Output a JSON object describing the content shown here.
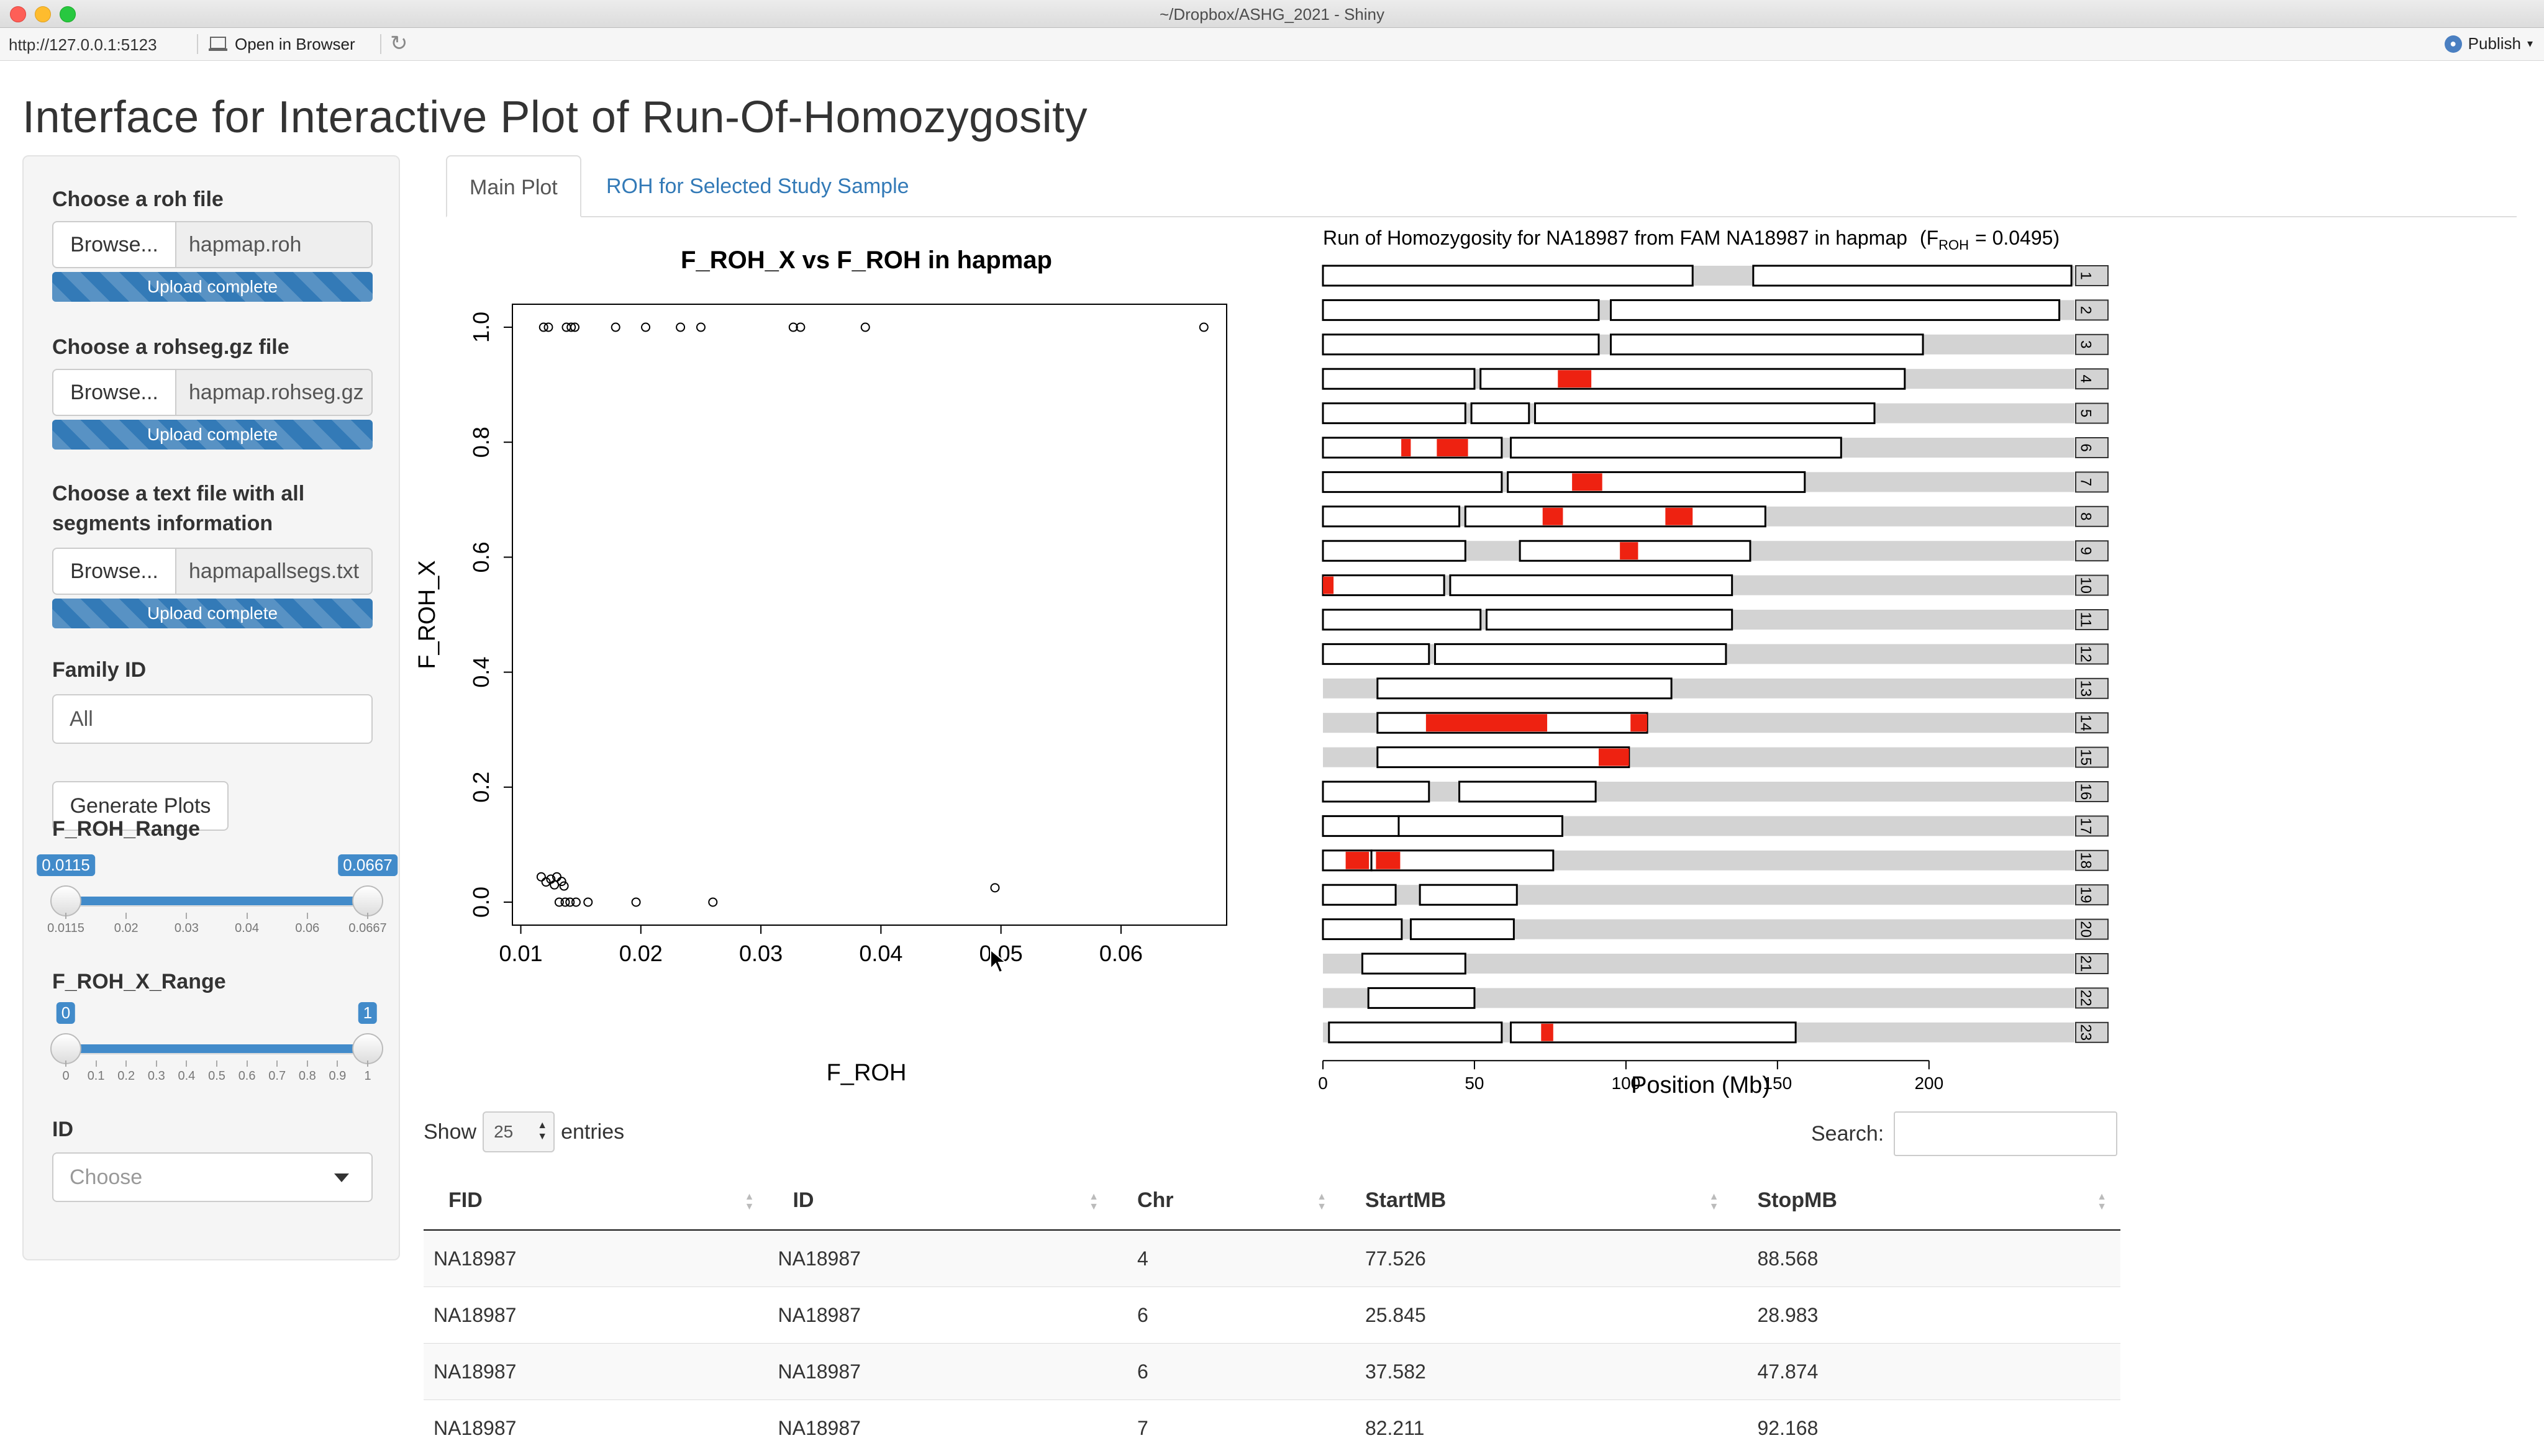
{
  "window": {
    "title": "~/Dropbox/ASHG_2021 - Shiny"
  },
  "toolbar": {
    "url": "http://127.0.0.1:5123",
    "open_in_browser": "Open in Browser",
    "publish": "Publish"
  },
  "app": {
    "title": "Interface for Interactive Plot of Run-Of-Homozygosity"
  },
  "sidebar": {
    "roh_file": {
      "label": "Choose a roh file",
      "browse": "Browse...",
      "filename": "hapmap.roh",
      "status": "Upload complete"
    },
    "rohseg_file": {
      "label": "Choose a rohseg.gz file",
      "browse": "Browse...",
      "filename": "hapmap.rohseg.gz",
      "status": "Upload complete"
    },
    "segments_file": {
      "label_line1": "Choose a text file with all",
      "label_line2": "segments information",
      "browse": "Browse...",
      "filename": "hapmapallsegs.txt",
      "status": "Upload complete"
    },
    "family_id": {
      "label": "Family ID",
      "value": "All"
    },
    "generate_button": "Generate Plots",
    "froh_range": {
      "label": "F_ROH_Range",
      "min_label": "0.0115",
      "max_label": "0.0667",
      "min": 0.0115,
      "max": 0.0667,
      "low": 0.0115,
      "high": 0.0667,
      "ticks": [
        "0.0115",
        "0.02",
        "0.03",
        "0.04",
        "0.06",
        "0.0667"
      ]
    },
    "froh_x_range": {
      "label": "F_ROH_X_Range",
      "min_label": "0",
      "max_label": "1",
      "min": 0,
      "max": 1,
      "low": 0,
      "high": 1,
      "ticks": [
        "0",
        "0.1",
        "0.2",
        "0.3",
        "0.4",
        "0.5",
        "0.6",
        "0.7",
        "0.8",
        "0.9",
        "1"
      ]
    },
    "id": {
      "label": "ID",
      "placeholder": "Choose"
    }
  },
  "tabs": [
    {
      "label": "Main Plot"
    },
    {
      "label": "ROH for Selected Study Sample"
    }
  ],
  "chart_data": [
    {
      "type": "scatter",
      "title": "F_ROH_X vs F_ROH in hapmap",
      "xlabel": "F_ROH",
      "ylabel": "F_ROH_X",
      "xlim": [
        0.0093,
        0.0688
      ],
      "ylim": [
        -0.04,
        1.04
      ],
      "xticks": [
        "0.01",
        "0.02",
        "0.03",
        "0.04",
        "0.05",
        "0.06"
      ],
      "yticks": [
        "0.0",
        "0.2",
        "0.4",
        "0.6",
        "0.8",
        "1.0"
      ],
      "points": [
        [
          0.0119,
          1
        ],
        [
          0.0123,
          1
        ],
        [
          0.0138,
          1
        ],
        [
          0.0142,
          1
        ],
        [
          0.0145,
          1
        ],
        [
          0.0179,
          1
        ],
        [
          0.0204,
          1
        ],
        [
          0.0233,
          1
        ],
        [
          0.025,
          1
        ],
        [
          0.0327,
          1
        ],
        [
          0.0333,
          1
        ],
        [
          0.0387,
          1
        ],
        [
          0.0669,
          1
        ],
        [
          0.0117,
          0.044
        ],
        [
          0.0121,
          0.035
        ],
        [
          0.0125,
          0.04
        ],
        [
          0.013,
          0.044
        ],
        [
          0.0128,
          0.03
        ],
        [
          0.0134,
          0.036
        ],
        [
          0.0136,
          0.028
        ],
        [
          0.0132,
          0.0
        ],
        [
          0.0137,
          0.0
        ],
        [
          0.0141,
          0.0
        ],
        [
          0.0146,
          0.0
        ],
        [
          0.0156,
          0.0
        ],
        [
          0.0196,
          0.0
        ],
        [
          0.026,
          0.0
        ],
        [
          0.0495,
          0.025
        ]
      ]
    },
    {
      "type": "bar",
      "title_prefix": "Run of Homozygosity for NA18987 from FAM NA18987 in hapmap",
      "froh_label_main": "F",
      "froh_label_sub": "ROH",
      "froh_value_text": "= 0.0495)",
      "xlabel": "Position (Mb)",
      "xticks": [
        "0",
        "50",
        "100",
        "150",
        "200"
      ],
      "xlim": [
        0,
        248
      ],
      "chromosomes": [
        {
          "chr": "1",
          "length": 248,
          "arms": [
            [
              0,
              122
            ],
            [
              142,
              247
            ]
          ],
          "roh": []
        },
        {
          "chr": "2",
          "length": 243,
          "arms": [
            [
              0,
              91
            ],
            [
              95,
              243
            ]
          ],
          "roh": []
        },
        {
          "chr": "3",
          "length": 198,
          "arms": [
            [
              0,
              91
            ],
            [
              95,
              198
            ]
          ],
          "roh": []
        },
        {
          "chr": "4",
          "length": 190,
          "arms": [
            [
              0,
              50
            ],
            [
              52,
              192
            ]
          ],
          "roh": [
            [
              77.526,
              88.568
            ]
          ]
        },
        {
          "chr": "5",
          "length": 182,
          "arms": [
            [
              0,
              47
            ],
            [
              49,
              68
            ],
            [
              70,
              182
            ]
          ],
          "roh": []
        },
        {
          "chr": "6",
          "length": 171,
          "arms": [
            [
              0,
              59
            ],
            [
              62,
              171
            ]
          ],
          "roh": [
            [
              25.845,
              28.983
            ],
            [
              37.582,
              47.874
            ]
          ]
        },
        {
          "chr": "7",
          "length": 159,
          "arms": [
            [
              0,
              59
            ],
            [
              61,
              159
            ]
          ],
          "roh": [
            [
              82.211,
              92.168
            ]
          ]
        },
        {
          "chr": "8",
          "length": 146,
          "arms": [
            [
              0,
              45
            ],
            [
              47,
              146
            ]
          ],
          "roh": [
            [
              72.5,
              79.2
            ],
            [
              113.0,
              122.0
            ]
          ]
        },
        {
          "chr": "9",
          "length": 141,
          "arms": [
            [
              0,
              47
            ],
            [
              65,
              141
            ]
          ],
          "roh": [
            [
              98.0,
              104.0
            ]
          ]
        },
        {
          "chr": "10",
          "length": 135,
          "arms": [
            [
              0,
              40
            ],
            [
              42,
              135
            ]
          ],
          "roh": [
            [
              0,
              3.5
            ]
          ]
        },
        {
          "chr": "11",
          "length": 135,
          "arms": [
            [
              0,
              52
            ],
            [
              54,
              135
            ]
          ],
          "roh": []
        },
        {
          "chr": "12",
          "length": 133,
          "arms": [
            [
              0,
              35
            ],
            [
              37,
              133
            ]
          ],
          "roh": []
        },
        {
          "chr": "13",
          "length": 115,
          "arms": [
            [
              18,
              115
            ]
          ],
          "roh": []
        },
        {
          "chr": "14",
          "length": 107,
          "arms": [
            [
              18,
              107
            ]
          ],
          "roh": [
            [
              34.0,
              74.0
            ],
            [
              101.5,
              107.0
            ]
          ]
        },
        {
          "chr": "15",
          "length": 102,
          "arms": [
            [
              18,
              101
            ]
          ],
          "roh": [
            [
              91.0,
              101.0
            ]
          ]
        },
        {
          "chr": "16",
          "length": 90,
          "arms": [
            [
              0,
              35
            ],
            [
              45,
              90
            ]
          ],
          "roh": []
        },
        {
          "chr": "17",
          "length": 83,
          "arms": [
            [
              0,
              25
            ],
            [
              25,
              79
            ]
          ],
          "roh": []
        },
        {
          "chr": "18",
          "length": 80,
          "arms": [
            [
              0,
              16
            ],
            [
              16,
              76
            ]
          ],
          "roh": [
            [
              7.5,
              15.2
            ],
            [
              17.5,
              25.5
            ]
          ]
        },
        {
          "chr": "19",
          "length": 59,
          "arms": [
            [
              0,
              24
            ],
            [
              32,
              64
            ]
          ],
          "roh": []
        },
        {
          "chr": "20",
          "length": 64,
          "arms": [
            [
              0,
              26
            ],
            [
              29,
              63
            ]
          ],
          "roh": []
        },
        {
          "chr": "21",
          "length": 47,
          "arms": [
            [
              13,
              47
            ]
          ],
          "roh": []
        },
        {
          "chr": "22",
          "length": 51,
          "arms": [
            [
              15,
              50
            ]
          ],
          "roh": []
        },
        {
          "chr": "23",
          "length": 156,
          "arms": [
            [
              2,
              59
            ],
            [
              62,
              156
            ]
          ],
          "roh": [
            [
              72.0,
              76.0
            ]
          ]
        }
      ]
    }
  ],
  "table": {
    "show_label": "Show",
    "length_value": "25",
    "entries_label": "entries",
    "search_label": "Search:",
    "columns": [
      "FID",
      "ID",
      "Chr",
      "StartMB",
      "StopMB"
    ],
    "rows": [
      [
        "NA18987",
        "NA18987",
        "4",
        "77.526",
        "88.568"
      ],
      [
        "NA18987",
        "NA18987",
        "6",
        "25.845",
        "28.983"
      ],
      [
        "NA18987",
        "NA18987",
        "6",
        "37.582",
        "47.874"
      ],
      [
        "NA18987",
        "NA18987",
        "7",
        "82.211",
        "92.168"
      ]
    ]
  },
  "colors": {
    "roh_segment": "#ee2211",
    "chrom_background": "#d3d3d3",
    "accent": "#337ab7",
    "slider_fill": "#428bca"
  }
}
